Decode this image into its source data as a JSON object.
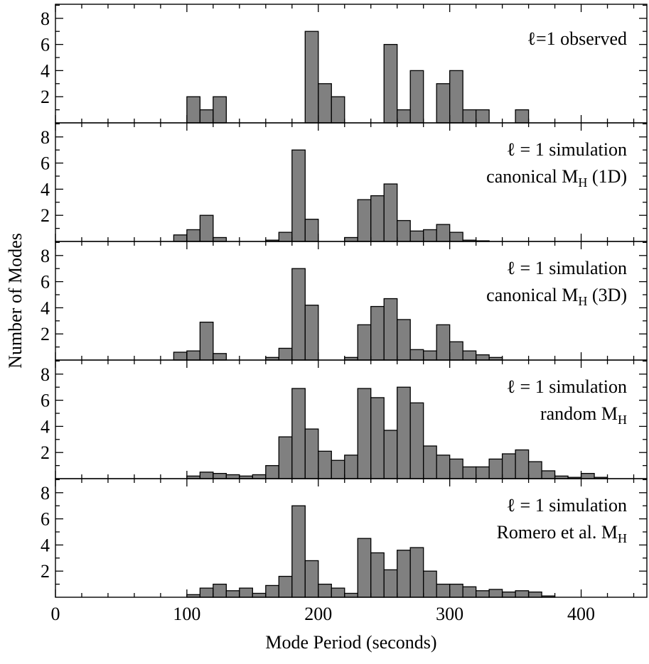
{
  "chart_data": {
    "type": "bar",
    "xlabel": "Mode Period (seconds)",
    "ylabel": "Number of Modes",
    "xlim": [
      0,
      450
    ],
    "ylim": [
      0,
      9
    ],
    "bin_width": 10,
    "x_ticks": [
      0,
      100,
      200,
      300,
      400
    ],
    "y_ticks": [
      2,
      4,
      6,
      8
    ],
    "panels": [
      {
        "label_lines": [
          {
            "main": "ℓ=1 observed",
            "sub": ""
          }
        ],
        "bin_starts": [
          100,
          110,
          120,
          190,
          200,
          210,
          250,
          260,
          270,
          290,
          300,
          310,
          320,
          350
        ],
        "values": [
          2,
          1,
          2,
          7,
          3,
          2,
          6,
          1,
          4,
          3,
          4,
          1,
          1,
          1
        ]
      },
      {
        "label_lines": [
          {
            "main": "ℓ = 1 simulation",
            "sub": ""
          },
          {
            "main": "canonical M",
            "sub": "H",
            "tail": " (1D)"
          }
        ],
        "bin_starts": [
          90,
          100,
          110,
          120,
          160,
          170,
          180,
          190,
          220,
          230,
          240,
          250,
          260,
          270,
          280,
          290,
          300,
          310,
          320
        ],
        "values": [
          0.5,
          0.9,
          2,
          0.3,
          0.1,
          0.7,
          7,
          1.7,
          0.3,
          3.2,
          3.5,
          4.4,
          1.6,
          0.8,
          0.9,
          1.3,
          0.7,
          0.1,
          0.05
        ]
      },
      {
        "label_lines": [
          {
            "main": "ℓ = 1 simulation",
            "sub": ""
          },
          {
            "main": "canonical M",
            "sub": "H",
            "tail": " (3D)"
          }
        ],
        "bin_starts": [
          90,
          100,
          110,
          120,
          160,
          170,
          180,
          190,
          220,
          230,
          240,
          250,
          260,
          270,
          280,
          290,
          300,
          310,
          320,
          330
        ],
        "values": [
          0.6,
          0.7,
          2.9,
          0.5,
          0.2,
          0.9,
          7,
          4.2,
          0.2,
          2.7,
          4.1,
          4.7,
          3.1,
          0.8,
          0.7,
          2.7,
          1.4,
          0.7,
          0.4,
          0.2
        ]
      },
      {
        "label_lines": [
          {
            "main": "ℓ = 1 simulation",
            "sub": ""
          },
          {
            "main": "random M",
            "sub": "H",
            "tail": ""
          }
        ],
        "bin_starts": [
          100,
          110,
          120,
          130,
          140,
          150,
          160,
          170,
          180,
          190,
          200,
          210,
          220,
          230,
          240,
          250,
          260,
          270,
          280,
          290,
          300,
          310,
          320,
          330,
          340,
          350,
          360,
          370,
          380,
          390,
          400,
          410
        ],
        "values": [
          0.2,
          0.5,
          0.4,
          0.3,
          0.2,
          0.3,
          1,
          3.2,
          6.9,
          3.8,
          2.1,
          1.4,
          1.8,
          6.9,
          6.2,
          3.7,
          7,
          5.8,
          2.5,
          1.8,
          1.5,
          0.9,
          0.9,
          1.5,
          1.9,
          2.2,
          1.3,
          0.6,
          0.2,
          0.1,
          0.4,
          0.1
        ]
      },
      {
        "label_lines": [
          {
            "main": "ℓ = 1 simulation",
            "sub": ""
          },
          {
            "main": "Romero et al. M",
            "sub": "H",
            "tail": ""
          }
        ],
        "bin_starts": [
          100,
          110,
          120,
          130,
          140,
          150,
          160,
          170,
          180,
          190,
          200,
          210,
          220,
          230,
          240,
          250,
          260,
          270,
          280,
          290,
          300,
          310,
          320,
          330,
          340,
          350,
          360,
          370
        ],
        "values": [
          0.2,
          0.7,
          1,
          0.5,
          0.7,
          0.3,
          0.9,
          1.6,
          7,
          2.8,
          1,
          0.7,
          0.3,
          4.5,
          3.4,
          2.1,
          3.6,
          3.8,
          2,
          1,
          1,
          0.8,
          0.5,
          0.6,
          0.4,
          0.5,
          0.4,
          0.1
        ]
      }
    ],
    "grid": false,
    "bar_color": "#808080",
    "edge_color": "#000000"
  }
}
